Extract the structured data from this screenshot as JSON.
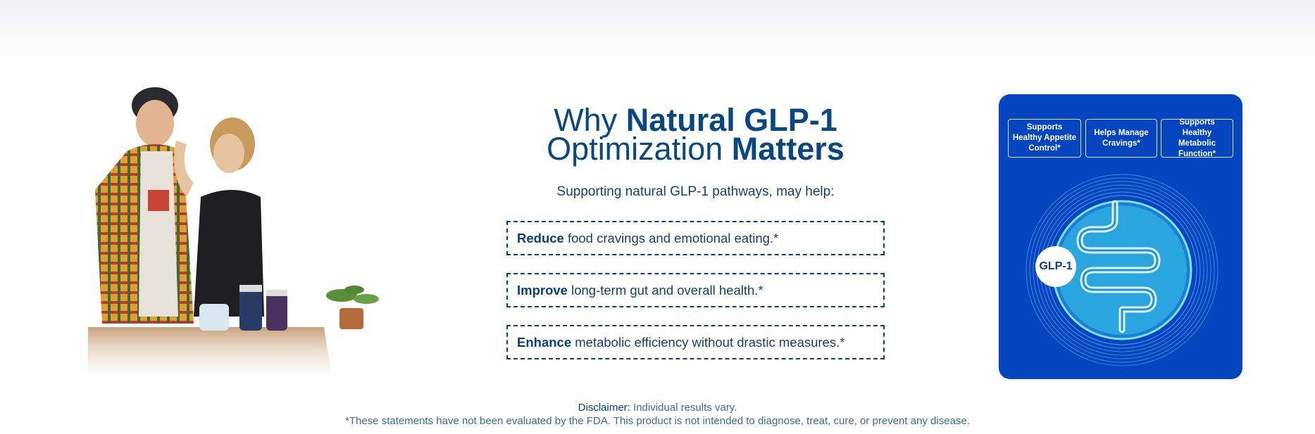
{
  "headline": {
    "line1_prefix": "Why",
    "line1_bold": "Natural GLP-1",
    "line2_prefix": "Optimization",
    "line2_bold": "Matters"
  },
  "subhead": "Supporting natural GLP-1 pathways, may help:",
  "benefits": [
    {
      "bold": "Reduce",
      "text": "food cravings and emotional eating.*"
    },
    {
      "bold": "Improve",
      "text": "long-term gut and overall health.*"
    },
    {
      "bold": "Enhance",
      "text": "metabolic efficiency without drastic measures.*"
    }
  ],
  "card": {
    "badges": [
      "Supports Healthy Appetite Control*",
      "Helps Manage Cravings*",
      "Supports Healthy Metabolic Function*"
    ],
    "glp_label": "GLP-1",
    "color": "#0545bf"
  },
  "disclaimer": {
    "lead": "Disclaimer:",
    "line1": "Individual results vary.",
    "line2": "*These statements have not been evaluated by the FDA. This product is not intended to diagnose, treat, cure, or prevent any disease."
  },
  "colors": {
    "navy": "#0b4280",
    "card_blue": "#0545bf",
    "accent_cyan": "#35c7e8"
  }
}
